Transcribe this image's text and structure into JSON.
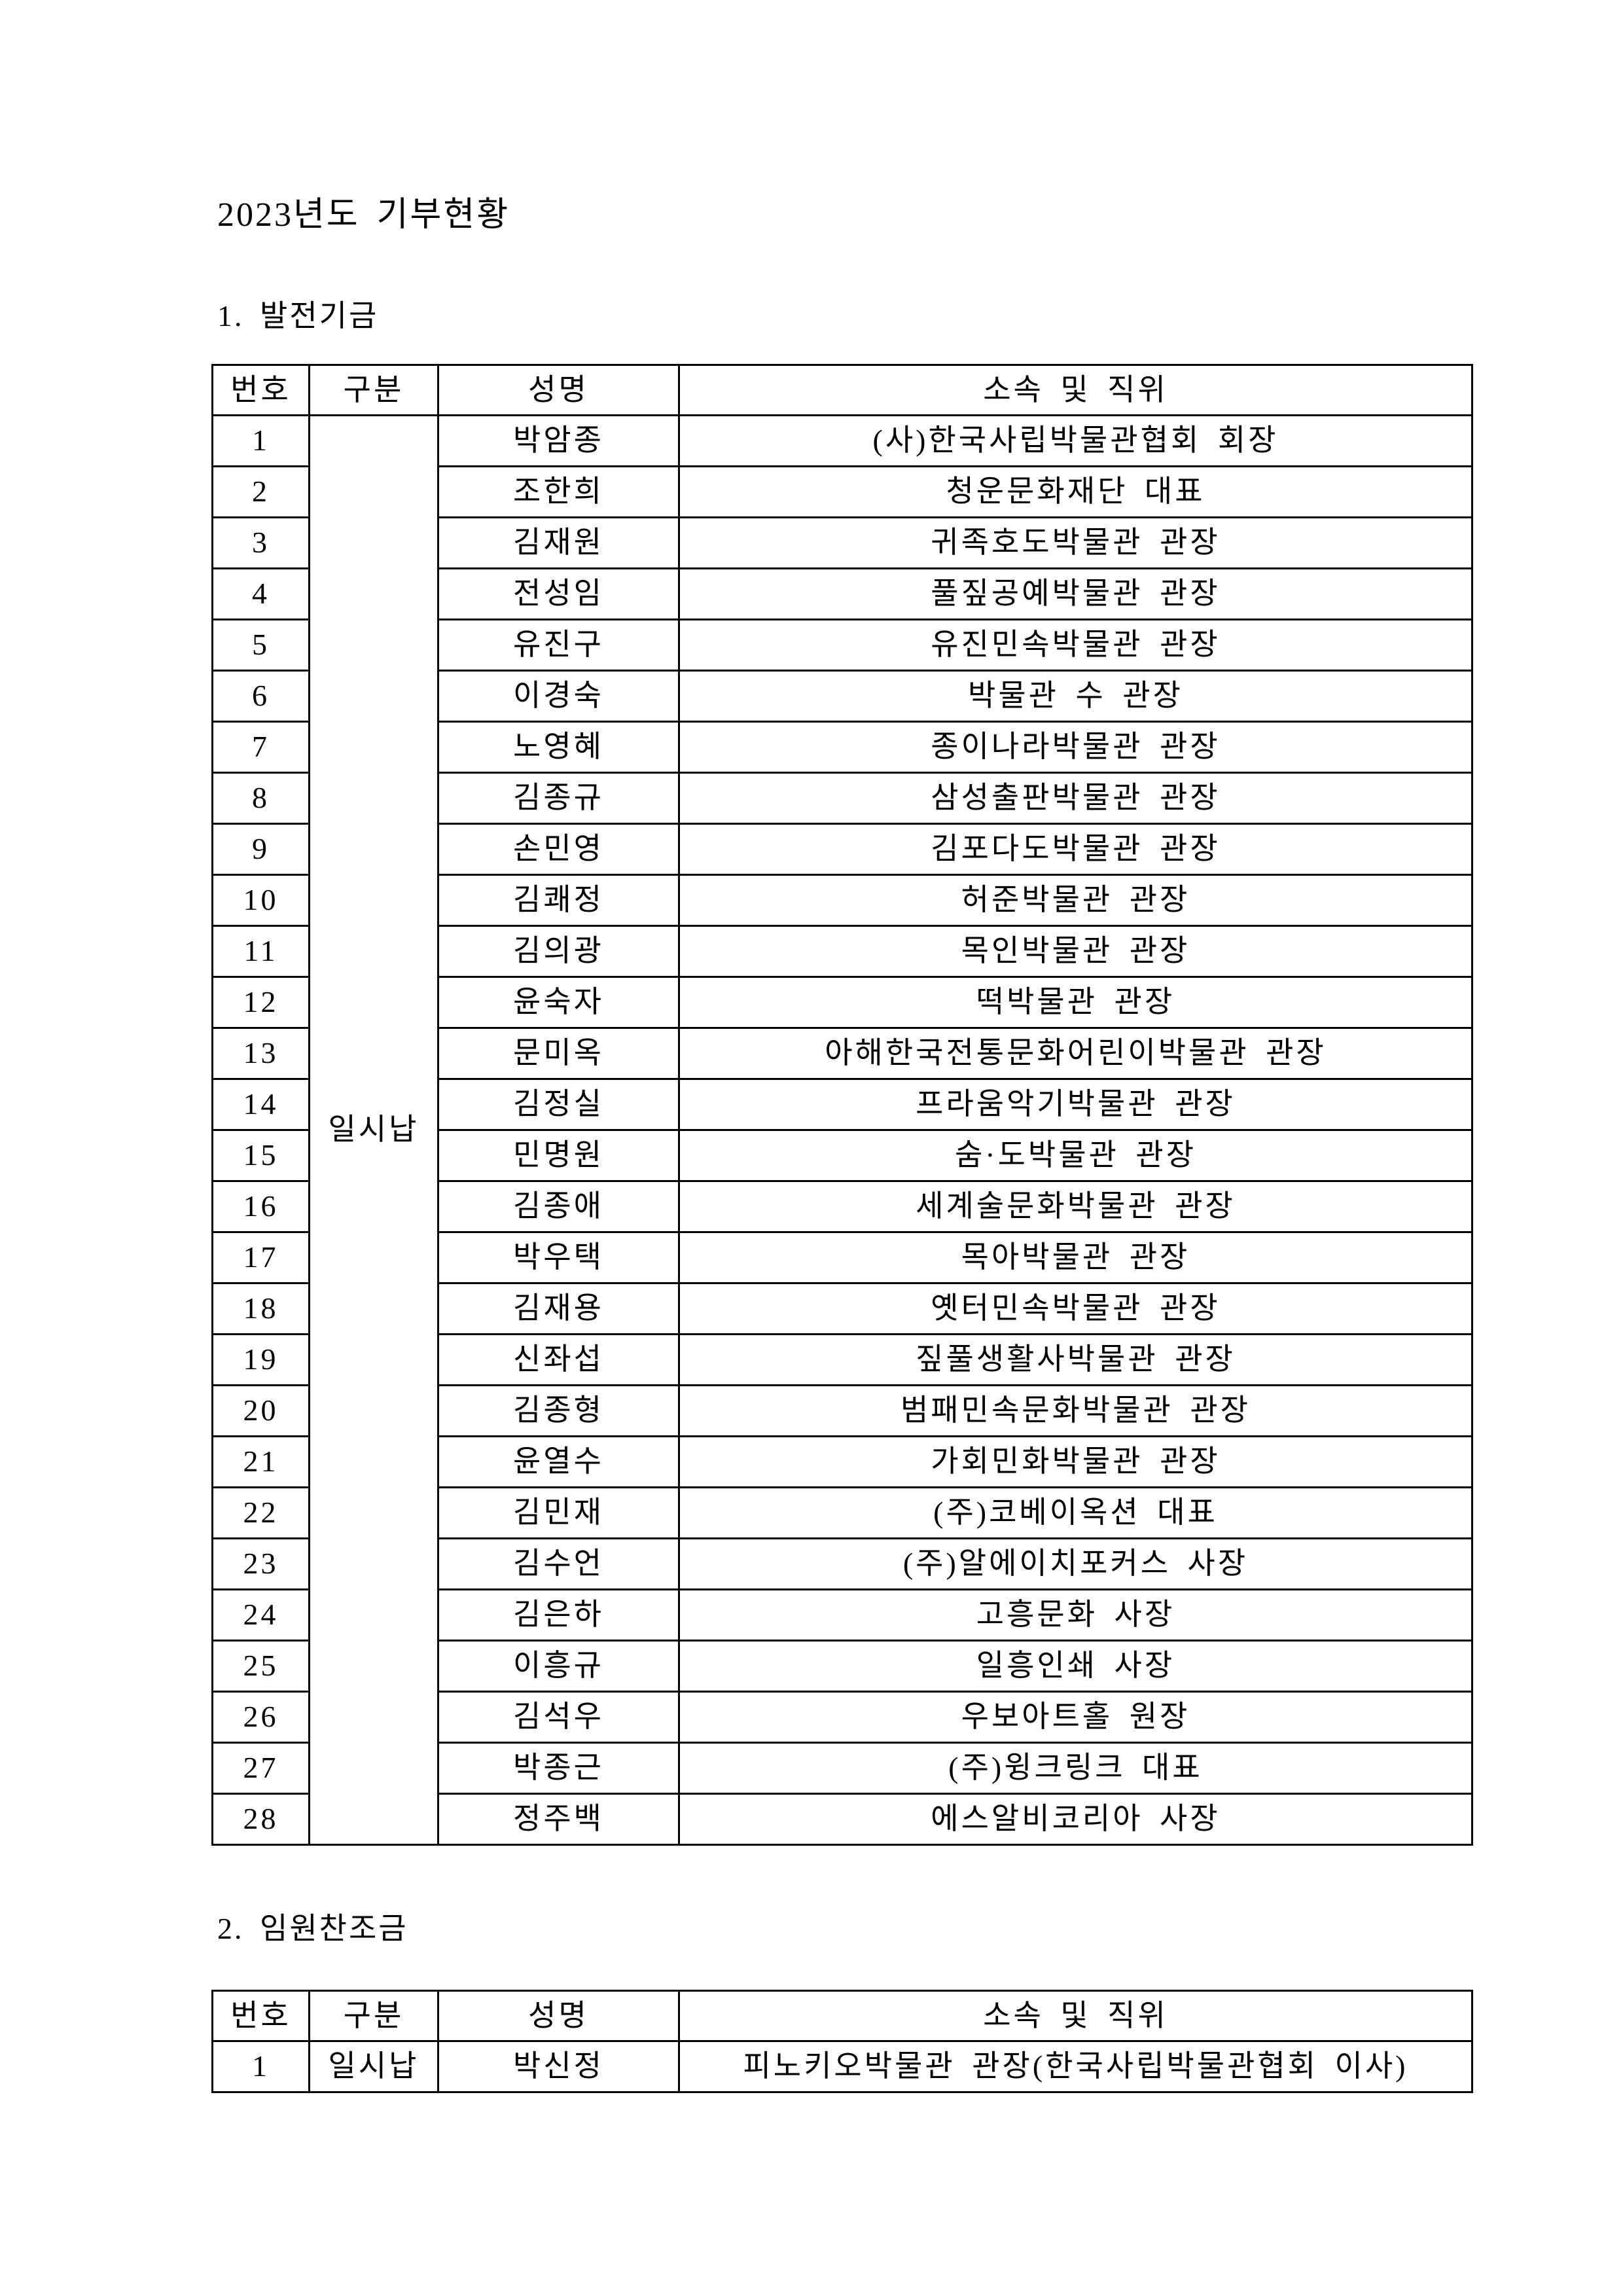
{
  "document": {
    "title": "2023년도 기부현황",
    "sections": [
      {
        "heading": "1. 발전기금",
        "table": {
          "headers": [
            "번호",
            "구분",
            "성명",
            "소속 및 직위"
          ],
          "merged_category": "일시납",
          "rows": [
            {
              "no": "1",
              "name": "박암종",
              "affiliation": "(사)한국사립박물관협회 회장"
            },
            {
              "no": "2",
              "name": "조한희",
              "affiliation": "청운문화재단 대표"
            },
            {
              "no": "3",
              "name": "김재원",
              "affiliation": "귀족호도박물관 관장"
            },
            {
              "no": "4",
              "name": "전성임",
              "affiliation": "풀짚공예박물관 관장"
            },
            {
              "no": "5",
              "name": "유진구",
              "affiliation": "유진민속박물관 관장"
            },
            {
              "no": "6",
              "name": "이경숙",
              "affiliation": "박물관 수 관장"
            },
            {
              "no": "7",
              "name": "노영혜",
              "affiliation": "종이나라박물관 관장"
            },
            {
              "no": "8",
              "name": "김종규",
              "affiliation": "삼성출판박물관 관장"
            },
            {
              "no": "9",
              "name": "손민영",
              "affiliation": "김포다도박물관 관장"
            },
            {
              "no": "10",
              "name": "김쾌정",
              "affiliation": "허준박물관 관장"
            },
            {
              "no": "11",
              "name": "김의광",
              "affiliation": "목인박물관 관장"
            },
            {
              "no": "12",
              "name": "윤숙자",
              "affiliation": "떡박물관 관장"
            },
            {
              "no": "13",
              "name": "문미옥",
              "affiliation": "아해한국전통문화어린이박물관 관장"
            },
            {
              "no": "14",
              "name": "김정실",
              "affiliation": "프라움악기박물관 관장"
            },
            {
              "no": "15",
              "name": "민명원",
              "affiliation": "숨·도박물관 관장"
            },
            {
              "no": "16",
              "name": "김종애",
              "affiliation": "세계술문화박물관 관장"
            },
            {
              "no": "17",
              "name": "박우택",
              "affiliation": "목아박물관 관장"
            },
            {
              "no": "18",
              "name": "김재용",
              "affiliation": "옛터민속박물관 관장"
            },
            {
              "no": "19",
              "name": "신좌섭",
              "affiliation": "짚풀생활사박물관 관장"
            },
            {
              "no": "20",
              "name": "김종형",
              "affiliation": "범패민속문화박물관 관장"
            },
            {
              "no": "21",
              "name": "윤열수",
              "affiliation": "가회민화박물관 관장"
            },
            {
              "no": "22",
              "name": "김민재",
              "affiliation": "(주)코베이옥션 대표"
            },
            {
              "no": "23",
              "name": "김수언",
              "affiliation": "(주)알에이치포커스 사장"
            },
            {
              "no": "24",
              "name": "김은하",
              "affiliation": "고흥문화 사장"
            },
            {
              "no": "25",
              "name": "이흥규",
              "affiliation": "일흥인쇄 사장"
            },
            {
              "no": "26",
              "name": "김석우",
              "affiliation": "우보아트홀 원장"
            },
            {
              "no": "27",
              "name": "박종근",
              "affiliation": "(주)윙크링크 대표"
            },
            {
              "no": "28",
              "name": "정주백",
              "affiliation": "에스알비코리아 사장"
            }
          ]
        }
      },
      {
        "heading": "2. 임원찬조금",
        "table": {
          "headers": [
            "번호",
            "구분",
            "성명",
            "소속 및 직위"
          ],
          "rows": [
            {
              "no": "1",
              "category": "일시납",
              "name": "박신정",
              "affiliation": "피노키오박물관 관장(한국사립박물관협회 이사)"
            }
          ]
        }
      }
    ]
  }
}
